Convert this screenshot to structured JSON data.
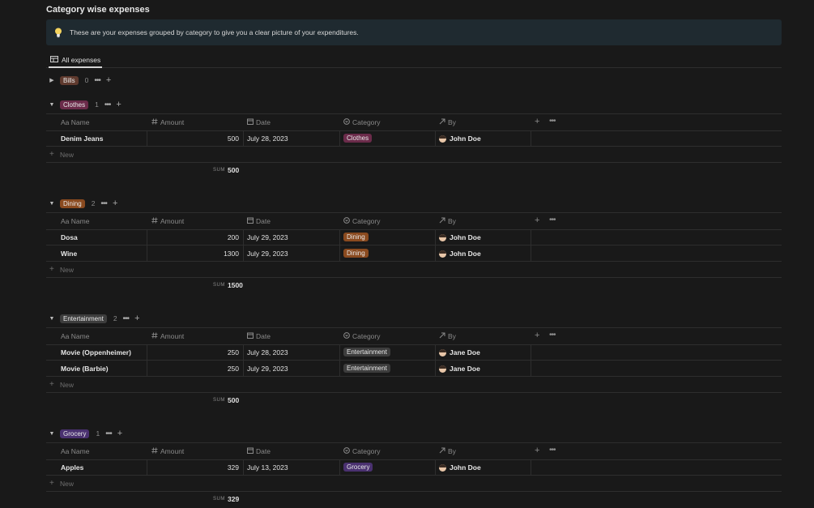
{
  "page": {
    "title": "Category wise expenses",
    "callout": "These are your expenses grouped by category to give you a clear picture of your expenditures.",
    "view_tab": "All expenses"
  },
  "columns": {
    "name": "Aa Name",
    "amount": "Amount",
    "date": "Date",
    "category": "Category",
    "by": "By"
  },
  "labels": {
    "new": "New",
    "sum": "SUM"
  },
  "colors": {
    "Bills": "#5f3a2e",
    "Clothes": "#6b2b4a",
    "Dining": "#8a4a1f",
    "Entertainment": "#3d3d3d",
    "Grocery": "#4a3170"
  },
  "groups": [
    {
      "name": "Bills",
      "count": "0",
      "collapsed": true,
      "rows": []
    },
    {
      "name": "Clothes",
      "count": "1",
      "collapsed": false,
      "sum": "500",
      "rows": [
        {
          "name": "Denim Jeans",
          "amount": "500",
          "date": "July 28, 2023",
          "category": "Clothes",
          "by": "John Doe"
        }
      ]
    },
    {
      "name": "Dining",
      "count": "2",
      "collapsed": false,
      "sum": "1500",
      "rows": [
        {
          "name": "Dosa",
          "amount": "200",
          "date": "July 29, 2023",
          "category": "Dining",
          "by": "John Doe"
        },
        {
          "name": "Wine",
          "amount": "1300",
          "date": "July 29, 2023",
          "category": "Dining",
          "by": "John Doe"
        }
      ]
    },
    {
      "name": "Entertainment",
      "count": "2",
      "collapsed": false,
      "sum": "500",
      "rows": [
        {
          "name": "Movie (Oppenheimer)",
          "amount": "250",
          "date": "July 28, 2023",
          "category": "Entertainment",
          "by": "Jane Doe"
        },
        {
          "name": "Movie (Barbie)",
          "amount": "250",
          "date": "July 29, 2023",
          "category": "Entertainment",
          "by": "Jane Doe"
        }
      ]
    },
    {
      "name": "Grocery",
      "count": "1",
      "collapsed": false,
      "sum": "329",
      "rows": [
        {
          "name": "Apples",
          "amount": "329",
          "date": "July 13, 2023",
          "category": "Grocery",
          "by": "John Doe"
        }
      ]
    }
  ],
  "help": "?"
}
